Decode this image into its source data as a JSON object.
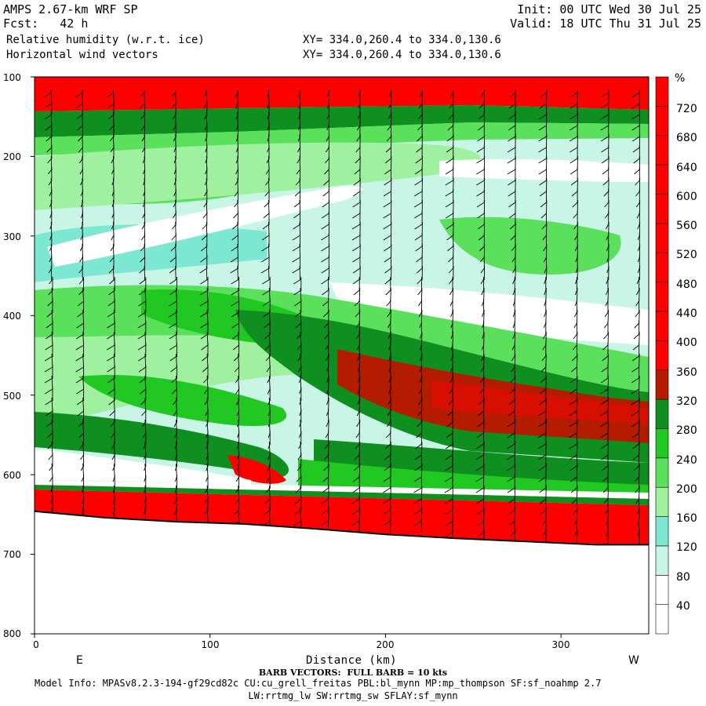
{
  "header": {
    "model": "AMPS 2.67-km WRF SP",
    "forecast": "Fcst:   42 h",
    "field1": "Relative humidity (w.r.t. ice)",
    "field2": "Horizontal wind vectors",
    "init": "Init: 00 UTC Wed 30 Jul 25",
    "valid": "Valid: 18 UTC Thu 31 Jul 25",
    "xy1": "XY= 334.0,260.4 to 334.0,130.6",
    "xy2": "XY= 334.0,260.4 to 334.0,130.6"
  },
  "footer": {
    "barb_note": "BARB VECTORS:  FULL BARB = 10 kts",
    "model_info": "Model Info: MPASv8.2.3-194-gf29cd82c CU:cu_grell_freitas PBL:bl_mynn MP:mp_thompson SF:sf_noahmp 2.7",
    "model_info2": "LW:rrtmg_lw SW:rrtmg_sw SFLAY:sf_mynn"
  },
  "chart_data": {
    "type": "heatmap",
    "title": "Relative humidity (w.r.t. ice)",
    "xlabel": "Distance (km)",
    "ylabel": "",
    "x_range": [
      0,
      350
    ],
    "y_range": [
      100,
      800
    ],
    "y_reversed": true,
    "x_ticks": [
      "0",
      "100",
      "200",
      "300"
    ],
    "y_ticks": [
      "100",
      "200",
      "300",
      "400",
      "500",
      "600",
      "700",
      "800"
    ],
    "x_end_labels": {
      "left": "E",
      "right": "W"
    },
    "colorbar": {
      "unit": "%",
      "labels": [
        "40",
        "80",
        "120",
        "160",
        "200",
        "240",
        "280",
        "320",
        "360",
        "400",
        "440",
        "480",
        "520",
        "560",
        "600",
        "640",
        "680",
        "720"
      ],
      "colors": [
        "#ffffff",
        "#c8f5e6",
        "#7de8d2",
        "#9ff09f",
        "#5be05b",
        "#22c822",
        "#0f8f1f",
        "#b41c00",
        "#ff0000"
      ]
    },
    "terrain_surface": {
      "x_km": [
        0,
        40,
        80,
        120,
        160,
        200,
        240,
        280,
        320,
        350
      ],
      "pressure_hpa": [
        646,
        654,
        659,
        662,
        668,
        675,
        680,
        684,
        688,
        688
      ]
    },
    "annotations": [
      "BARB VECTORS:  FULL BARB = 10 kts"
    ]
  }
}
